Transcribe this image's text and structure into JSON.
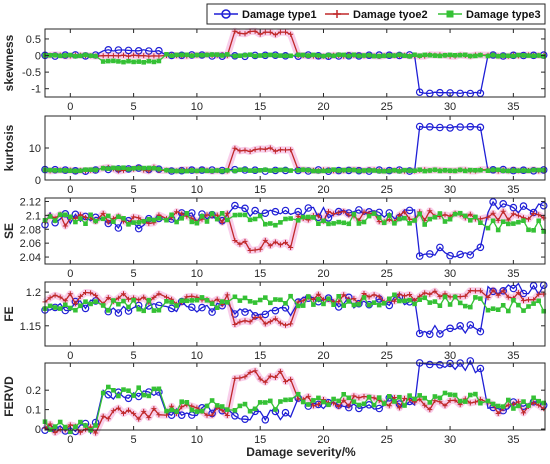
{
  "chart_data": {
    "type": "line",
    "xlabel": "Damage severity/%",
    "xlim": [
      -2,
      37.5
    ],
    "xticks": [
      0,
      5,
      10,
      15,
      20,
      25,
      30,
      35
    ],
    "legend": {
      "placement": "top-right",
      "entries": [
        "Damage type1",
        "Damage tyoe2",
        "Damage type3"
      ]
    },
    "series_styles": [
      {
        "name": "Damage type1",
        "color": "#1f1fd6",
        "marker": "circle"
      },
      {
        "name": "Damage tyoe2",
        "color": "#c0282a",
        "marker": "plus"
      },
      {
        "name": "Damage type3",
        "color": "#35c135",
        "marker": "square"
      }
    ],
    "band_color": "#f2a6d8",
    "panels": [
      {
        "ylabel": "skewness",
        "ylim": [
          -1.25,
          0.8
        ],
        "yticks": [
          -1,
          -0.5,
          0,
          0.5
        ],
        "ytick_labels": [
          "-1",
          "-0.5",
          "0",
          "0.5"
        ],
        "segments": [
          [
            [
              -2,
              2.2,
              0,
              0,
              0
            ],
            [
              2.6,
              7.2,
              0.15,
              0,
              -0.18
            ],
            [
              7.6,
              12.6,
              0,
              0,
              0.02
            ],
            [
              13,
              17.6,
              0,
              0.68,
              0
            ],
            [
              18,
              27.2,
              0,
              0,
              0
            ],
            [
              27.6,
              32.6,
              -1.13,
              0,
              0
            ],
            [
              33,
              37.5,
              0,
              0,
              0
            ]
          ]
        ]
      },
      {
        "ylabel": "kurtosis",
        "ylim": [
          0,
          20
        ],
        "yticks": [
          0,
          10
        ],
        "ytick_labels": [
          "0",
          "10"
        ],
        "segments": [
          [
            [
              -2,
              2.2,
              3,
              3,
              3
            ],
            [
              2.6,
              7.2,
              3.5,
              3.5,
              3.6
            ],
            [
              7.6,
              12.6,
              3,
              3,
              3
            ],
            [
              13,
              17.6,
              3,
              9.5,
              3
            ],
            [
              18,
              27.2,
              3,
              3,
              3
            ],
            [
              27.6,
              32.6,
              16.5,
              3,
              3
            ],
            [
              33,
              37.5,
              3,
              3,
              3
            ]
          ]
        ]
      },
      {
        "ylabel": "SE",
        "ylim": [
          2.03,
          2.125
        ],
        "yticks": [
          2.04,
          2.06,
          2.08,
          2.1,
          2.12
        ],
        "ytick_labels": [
          "2.04",
          "2.06",
          "2.08",
          "2.1",
          "2.12"
        ],
        "segments": [
          [
            [
              -2,
              2.2,
              2.095,
              2.093,
              2.093
            ],
            [
              2.6,
              7.2,
              2.088,
              2.096,
              2.091
            ],
            [
              7.6,
              12.6,
              2.097,
              2.098,
              2.095
            ],
            [
              13,
              17.6,
              2.107,
              2.058,
              2.094
            ],
            [
              18,
              27.2,
              2.104,
              2.099,
              2.096
            ],
            [
              27.6,
              32.6,
              2.048,
              2.1,
              2.095
            ],
            [
              33,
              37.5,
              2.112,
              2.098,
              2.085
            ]
          ]
        ]
      },
      {
        "ylabel": "FE",
        "ylim": [
          1.12,
          1.215
        ],
        "yticks": [
          1.15,
          1.2
        ],
        "ytick_labels": [
          "1.15",
          "1.2"
        ],
        "segments": [
          [
            [
              -2,
              2.2,
              1.18,
              1.191,
              1.181
            ],
            [
              2.6,
              7.2,
              1.175,
              1.19,
              1.18
            ],
            [
              7.6,
              12.6,
              1.178,
              1.19,
              1.185
            ],
            [
              13,
              17.6,
              1.172,
              1.155,
              1.187
            ],
            [
              18,
              27.2,
              1.185,
              1.19,
              1.188
            ],
            [
              27.6,
              32.6,
              1.145,
              1.195,
              1.185
            ],
            [
              33,
              37.5,
              1.205,
              1.195,
              1.18
            ]
          ]
        ]
      },
      {
        "ylabel": "FERVD",
        "ylim": [
          -0.005,
          0.34
        ],
        "yticks": [
          0,
          0.1,
          0.2
        ],
        "ytick_labels": [
          "0",
          "0.1",
          "0.2"
        ],
        "segments": [
          [
            [
              -2,
              2.2,
              0.01,
              0.01,
              0.01
            ],
            [
              2.6,
              7.2,
              0.17,
              0.08,
              0.19
            ],
            [
              7.6,
              12.6,
              0.1,
              0.1,
              0.12
            ],
            [
              13,
              17.6,
              0.07,
              0.27,
              0.12
            ],
            [
              18,
              27.2,
              0.13,
              0.14,
              0.15
            ],
            [
              27.6,
              32.6,
              0.32,
              0.13,
              0.16
            ],
            [
              33,
              37.5,
              0.12,
              0.11,
              0.13
            ]
          ]
        ]
      }
    ]
  }
}
